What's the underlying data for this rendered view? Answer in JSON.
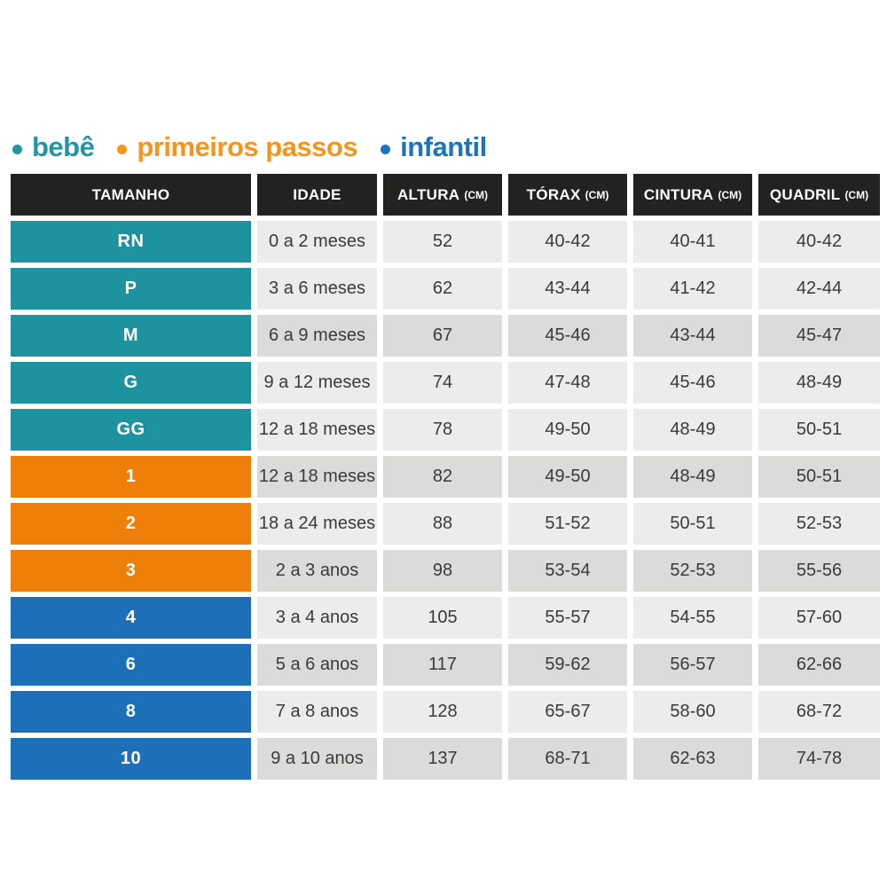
{
  "legend": {
    "items": [
      {
        "label": "bebê",
        "color": "#2495A6",
        "group": "bebe"
      },
      {
        "label": "primeiros passos",
        "color": "#F7941D",
        "group": "primeiros_passos"
      },
      {
        "label": "infantil",
        "color": "#1C75BC",
        "group": "infantil"
      }
    ]
  },
  "table": {
    "headers": [
      {
        "label": "TAMANHO",
        "unit": ""
      },
      {
        "label": "IDADE",
        "unit": ""
      },
      {
        "label": "ALTURA",
        "unit": "(CM)"
      },
      {
        "label": "TÓRAX",
        "unit": "(CM)"
      },
      {
        "label": "CINTURA",
        "unit": "(CM)"
      },
      {
        "label": "QUADRIL",
        "unit": "(CM)"
      }
    ],
    "rows": [
      {
        "size": "RN",
        "group": "bebe",
        "shade": "light",
        "idade": "0 a 2 meses",
        "altura": "52",
        "torax": "40-42",
        "cintura": "40-41",
        "quadril": "40-42"
      },
      {
        "size": "P",
        "group": "bebe",
        "shade": "light",
        "idade": "3 a 6 meses",
        "altura": "62",
        "torax": "43-44",
        "cintura": "41-42",
        "quadril": "42-44"
      },
      {
        "size": "M",
        "group": "bebe",
        "shade": "dark",
        "idade": "6 a 9 meses",
        "altura": "67",
        "torax": "45-46",
        "cintura": "43-44",
        "quadril": "45-47"
      },
      {
        "size": "G",
        "group": "bebe",
        "shade": "light",
        "idade": "9 a 12 meses",
        "altura": "74",
        "torax": "47-48",
        "cintura": "45-46",
        "quadril": "48-49"
      },
      {
        "size": "GG",
        "group": "bebe",
        "shade": "light",
        "idade": "12 a 18 meses",
        "altura": "78",
        "torax": "49-50",
        "cintura": "48-49",
        "quadril": "50-51"
      },
      {
        "size": "1",
        "group": "primeiros_passos",
        "shade": "dark",
        "idade": "12 a 18 meses",
        "altura": "82",
        "torax": "49-50",
        "cintura": "48-49",
        "quadril": "50-51"
      },
      {
        "size": "2",
        "group": "primeiros_passos",
        "shade": "light",
        "idade": "18 a 24 meses",
        "altura": "88",
        "torax": "51-52",
        "cintura": "50-51",
        "quadril": "52-53"
      },
      {
        "size": "3",
        "group": "primeiros_passos",
        "shade": "dark",
        "idade": "2 a 3 anos",
        "altura": "98",
        "torax": "53-54",
        "cintura": "52-53",
        "quadril": "55-56"
      },
      {
        "size": "4",
        "group": "infantil",
        "shade": "light",
        "idade": "3 a 4 anos",
        "altura": "105",
        "torax": "55-57",
        "cintura": "54-55",
        "quadril": "57-60"
      },
      {
        "size": "6",
        "group": "infantil",
        "shade": "dark",
        "idade": "5 a 6 anos",
        "altura": "117",
        "torax": "59-62",
        "cintura": "56-57",
        "quadril": "62-66"
      },
      {
        "size": "8",
        "group": "infantil",
        "shade": "light",
        "idade": "7 a 8 anos",
        "altura": "128",
        "torax": "65-67",
        "cintura": "58-60",
        "quadril": "68-72"
      },
      {
        "size": "10",
        "group": "infantil",
        "shade": "dark",
        "idade": "9 a 10 anos",
        "altura": "137",
        "torax": "68-71",
        "cintura": "62-63",
        "quadril": "74-78"
      }
    ]
  },
  "colors": {
    "bebe": "#1E93A0",
    "primeiros_passos": "#EE8009",
    "infantil": "#1D70B7",
    "header_bg": "#232221",
    "row_light": "#EDECEA",
    "row_dark": "#DBDBD9",
    "text_dark": "#3B3A39"
  },
  "chart_data": {
    "type": "table",
    "title": "",
    "legend": [
      "bebê",
      "primeiros passos",
      "infantil"
    ],
    "columns": [
      "TAMANHO",
      "IDADE",
      "ALTURA (CM)",
      "TÓRAX (CM)",
      "CINTURA (CM)",
      "QUADRIL (CM)"
    ],
    "rows": [
      [
        "RN",
        "0 a 2 meses",
        "52",
        "40-42",
        "40-41",
        "40-42"
      ],
      [
        "P",
        "3 a 6 meses",
        "62",
        "43-44",
        "41-42",
        "42-44"
      ],
      [
        "M",
        "6 a 9 meses",
        "67",
        "45-46",
        "43-44",
        "45-47"
      ],
      [
        "G",
        "9 a 12 meses",
        "74",
        "47-48",
        "45-46",
        "48-49"
      ],
      [
        "GG",
        "12 a 18 meses",
        "78",
        "49-50",
        "48-49",
        "50-51"
      ],
      [
        "1",
        "12 a 18 meses",
        "82",
        "49-50",
        "48-49",
        "50-51"
      ],
      [
        "2",
        "18 a 24 meses",
        "88",
        "51-52",
        "50-51",
        "52-53"
      ],
      [
        "3",
        "2 a 3 anos",
        "98",
        "53-54",
        "52-53",
        "55-56"
      ],
      [
        "4",
        "3 a 4 anos",
        "105",
        "55-57",
        "54-55",
        "57-60"
      ],
      [
        "6",
        "5 a 6 anos",
        "117",
        "59-62",
        "56-57",
        "62-66"
      ],
      [
        "8",
        "7 a 8 anos",
        "128",
        "65-67",
        "58-60",
        "68-72"
      ],
      [
        "10",
        "9 a 10 anos",
        "137",
        "68-71",
        "62-63",
        "74-78"
      ]
    ],
    "row_groups": [
      "bebe",
      "bebe",
      "bebe",
      "bebe",
      "bebe",
      "primeiros_passos",
      "primeiros_passos",
      "primeiros_passos",
      "infantil",
      "infantil",
      "infantil",
      "infantil"
    ]
  }
}
